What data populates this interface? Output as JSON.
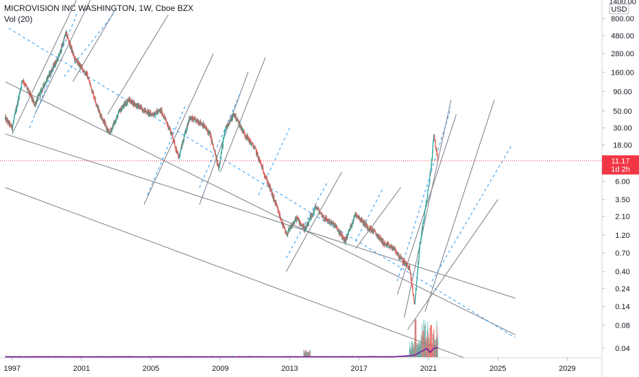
{
  "header": {
    "symbol_line": "MICROVISION INC WASHINGTON, 1W, Cboe BZX",
    "volume_line": "Vol (20)"
  },
  "price_axis": {
    "currency": "USD",
    "current_price": "11.17",
    "countdown": "1d 2h",
    "current_color": "#f23645"
  },
  "colors": {
    "up": "#26a69a",
    "down": "#ef5350",
    "channel": "#787b86",
    "dashed": "#2196f3",
    "volume_ma": "#7b1fa2"
  },
  "chart_data": {
    "type": "candlestick",
    "title": "MICROVISION INC WASHINGTON, 1W, Cboe BZX",
    "y_scale": "log",
    "ylim": [
      0.03,
      1400
    ],
    "xlim": [
      1996.3,
      2031.0
    ],
    "y_ticks": [
      "1400.00",
      "800.00",
      "480.00",
      "280.00",
      "160.00",
      "90.00",
      "50.00",
      "30.00",
      "18.00",
      "11.17",
      "6.00",
      "3.50",
      "2.10",
      "1.20",
      "0.70",
      "0.40",
      "0.24",
      "0.14",
      "0.08",
      "0.04"
    ],
    "x_ticks": [
      "1997",
      "2001",
      "2005",
      "2009",
      "2013",
      "2017",
      "2021",
      "2025",
      "2029"
    ],
    "price_path": [
      [
        1996.6,
        40
      ],
      [
        1997.0,
        30
      ],
      [
        1997.6,
        130
      ],
      [
        1998.3,
        60
      ],
      [
        1999.0,
        130
      ],
      [
        1999.7,
        260
      ],
      [
        2000.1,
        520
      ],
      [
        2000.6,
        240
      ],
      [
        2001.3,
        150
      ],
      [
        2002.0,
        50
      ],
      [
        2002.6,
        25
      ],
      [
        2003.2,
        50
      ],
      [
        2003.7,
        70
      ],
      [
        2004.4,
        55
      ],
      [
        2005.0,
        45
      ],
      [
        2005.6,
        50
      ],
      [
        2006.2,
        25
      ],
      [
        2006.6,
        12
      ],
      [
        2007.2,
        40
      ],
      [
        2007.9,
        35
      ],
      [
        2008.4,
        25
      ],
      [
        2008.9,
        9
      ],
      [
        2009.3,
        30
      ],
      [
        2009.8,
        45
      ],
      [
        2010.4,
        25
      ],
      [
        2011.0,
        16
      ],
      [
        2011.6,
        7
      ],
      [
        2012.2,
        3
      ],
      [
        2012.8,
        1.2
      ],
      [
        2013.4,
        2.0
      ],
      [
        2013.9,
        1.4
      ],
      [
        2014.5,
        2.8
      ],
      [
        2015.0,
        2.0
      ],
      [
        2015.6,
        1.6
      ],
      [
        2016.2,
        1.0
      ],
      [
        2016.8,
        2.3
      ],
      [
        2017.4,
        1.6
      ],
      [
        2017.9,
        1.3
      ],
      [
        2018.5,
        0.9
      ],
      [
        2019.0,
        0.8
      ],
      [
        2019.5,
        0.55
      ],
      [
        2019.9,
        0.45
      ],
      [
        2020.2,
        0.15
      ],
      [
        2020.5,
        0.9
      ],
      [
        2020.8,
        2.5
      ],
      [
        2021.0,
        5
      ],
      [
        2021.2,
        12
      ],
      [
        2021.3,
        26
      ],
      [
        2021.4,
        18
      ],
      [
        2021.55,
        11.17
      ]
    ],
    "volume_ma": [
      [
        1996.6,
        0.02
      ],
      [
        2019.0,
        0.03
      ],
      [
        2020.2,
        0.2
      ],
      [
        2020.6,
        0.6
      ],
      [
        2020.9,
        0.9
      ],
      [
        2021.1,
        0.5
      ],
      [
        2021.3,
        0.9
      ],
      [
        2021.55,
        1.0
      ]
    ],
    "channel_lines": [
      [
        [
          1996.6,
          25
        ],
        [
          2026.0,
          0.18
        ]
      ],
      [
        [
          1996.6,
          120
        ],
        [
          2026.0,
          0.06
        ]
      ],
      [
        [
          1996.6,
          5
        ],
        [
          2024.0,
          0.025
        ]
      ]
    ],
    "dashed_lines": [
      [
        [
          1996.8,
          600
        ],
        [
          2026.0,
          0.055
        ]
      ]
    ],
    "short_lines": [
      [
        [
          1997.0,
          25
        ],
        [
          2000.7,
          1400
        ]
      ],
      [
        [
          1998.3,
          45
        ],
        [
          2001.5,
          1400
        ]
      ],
      [
        [
          2000.5,
          120
        ],
        [
          2003.0,
          1100
        ]
      ],
      [
        [
          2002.5,
          45
        ],
        [
          2006.0,
          900
        ]
      ],
      [
        [
          2004.6,
          3
        ],
        [
          2008.6,
          280
        ]
      ],
      [
        [
          2007.8,
          3
        ],
        [
          2010.6,
          160
        ]
      ],
      [
        [
          2009.0,
          8
        ],
        [
          2011.6,
          250
        ]
      ],
      [
        [
          2012.8,
          0.4
        ],
        [
          2016.0,
          8
        ]
      ],
      [
        [
          2016.8,
          0.8
        ],
        [
          2019.4,
          5
        ]
      ],
      [
        [
          2019.6,
          0.1
        ],
        [
          2022.3,
          70
        ]
      ],
      [
        [
          2019.2,
          0.2
        ],
        [
          2022.6,
          45
        ]
      ],
      [
        [
          2020.8,
          0.12
        ],
        [
          2024.8,
          70
        ]
      ],
      [
        [
          2019.8,
          0.07
        ],
        [
          2025.0,
          3.5
        ]
      ]
    ],
    "short_dashed_lines": [
      [
        [
          1998.0,
          30
        ],
        [
          2000.8,
          1000
        ]
      ],
      [
        [
          2000.0,
          140
        ],
        [
          2002.8,
          900
        ]
      ],
      [
        [
          2004.8,
          4
        ],
        [
          2007.0,
          60
        ]
      ],
      [
        [
          2007.8,
          5
        ],
        [
          2010.2,
          90
        ]
      ],
      [
        [
          2011.2,
          4
        ],
        [
          2013.0,
          30
        ]
      ],
      [
        [
          2012.8,
          0.6
        ],
        [
          2015.2,
          6
        ]
      ],
      [
        [
          2016.8,
          1.0
        ],
        [
          2018.4,
          5
        ]
      ],
      [
        [
          2019.2,
          0.3
        ],
        [
          2022.3,
          55
        ]
      ],
      [
        [
          2021.2,
          0.3
        ],
        [
          2025.8,
          18
        ]
      ]
    ]
  }
}
